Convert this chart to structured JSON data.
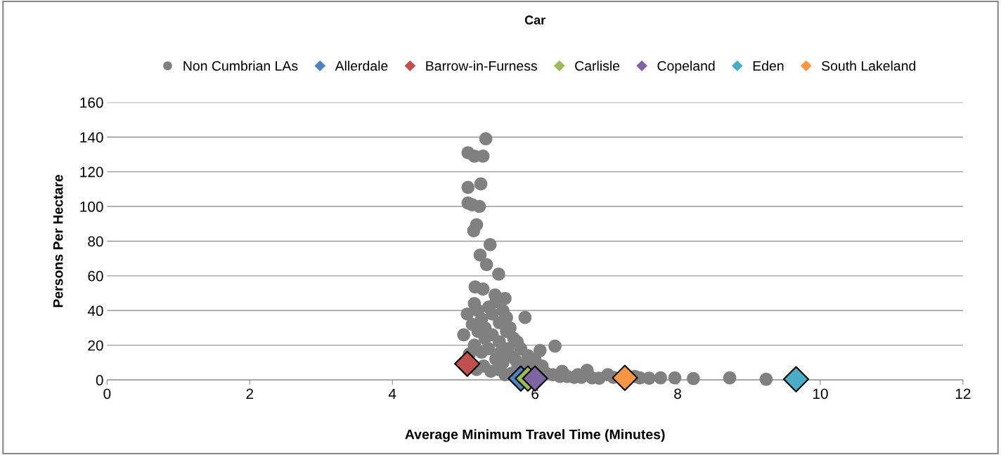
{
  "chart_data": {
    "type": "scatter",
    "title": "Car",
    "xlabel": "Average Minimum Travel Time (Minutes)",
    "ylabel": "Persons Per Hectare",
    "xlim": [
      0,
      12
    ],
    "xticks": [
      0,
      2,
      4,
      6,
      8,
      10,
      12
    ],
    "ylim": [
      0,
      160
    ],
    "yticks": [
      0,
      20,
      40,
      60,
      80,
      100,
      120,
      140,
      160
    ],
    "grid": "y",
    "legend": "top",
    "series": [
      {
        "name": "Non Cumbrian LAs",
        "color": "#808080",
        "marker": "circle",
        "x": [
          5.31,
          5.06,
          5.15,
          5.27,
          5.24,
          5.06,
          5.06,
          5.12,
          5.22,
          5.18,
          5.14,
          5.37,
          5.23,
          5.32,
          5.49,
          5.16,
          5.27,
          5.44,
          5.58,
          5.86,
          6.07,
          6.28,
          5.0,
          5.05,
          5.08,
          6.38,
          6.73,
          7.02,
          7.47,
          7.76,
          7.96,
          8.22,
          8.73,
          9.24,
          5.15,
          5.2,
          5.25,
          5.3,
          5.35,
          5.4,
          5.45,
          5.5,
          5.55,
          5.6,
          5.65,
          5.7,
          5.75,
          5.2,
          5.3,
          5.4,
          5.5,
          5.6,
          5.8,
          5.9,
          6.0,
          6.1,
          5.15,
          5.25,
          5.35,
          5.45,
          5.55,
          5.65,
          5.75,
          5.85,
          5.95,
          6.15,
          6.25,
          6.35,
          6.45,
          6.55,
          6.65,
          6.8,
          6.9,
          7.1,
          7.6,
          5.12,
          5.52,
          5.62,
          5.72,
          5.18,
          5.28,
          5.38,
          5.48,
          5.58,
          5.68,
          6.6,
          7.4
        ],
        "values": [
          139,
          131,
          129,
          129,
          113,
          111,
          102,
          101,
          100,
          89.5,
          86,
          78,
          72,
          66.5,
          61,
          53.6,
          52.4,
          49,
          47,
          36,
          17,
          19.5,
          26,
          38,
          15,
          5,
          5.6,
          3,
          1.2,
          1.2,
          1.2,
          0.8,
          1.2,
          0.4,
          44,
          40,
          35,
          30,
          42,
          38,
          45,
          33,
          40,
          36,
          30,
          24,
          22,
          28,
          24,
          26,
          22,
          28,
          18,
          14,
          12,
          8,
          20,
          16,
          18,
          12,
          10,
          14,
          10,
          8,
          6,
          4,
          3,
          2,
          2,
          1.5,
          1.5,
          1.2,
          1,
          1.5,
          1,
          32,
          16,
          18,
          12,
          6,
          8,
          5,
          6,
          3,
          4,
          3,
          2
        ]
      },
      {
        "name": "Allerdale",
        "color": "#4f81bd",
        "marker": "diamond",
        "x": [
          5.8
        ],
        "values": [
          0.8
        ]
      },
      {
        "name": "Barrow-in-Furness",
        "color": "#c0504d",
        "marker": "diamond",
        "x": [
          5.05
        ],
        "values": [
          9.3
        ]
      },
      {
        "name": "Carlisle",
        "color": "#9bbb59",
        "marker": "diamond",
        "x": [
          5.9
        ],
        "values": [
          0.8
        ]
      },
      {
        "name": "Copeland",
        "color": "#8064a2",
        "marker": "diamond",
        "x": [
          6.0
        ],
        "values": [
          0.8
        ]
      },
      {
        "name": "Eden",
        "color": "#4bacc6",
        "marker": "diamond",
        "x": [
          9.66
        ],
        "values": [
          0.4
        ]
      },
      {
        "name": "South Lakeland",
        "color": "#f79646",
        "marker": "diamond",
        "x": [
          7.26
        ],
        "values": [
          1.2
        ]
      }
    ]
  }
}
